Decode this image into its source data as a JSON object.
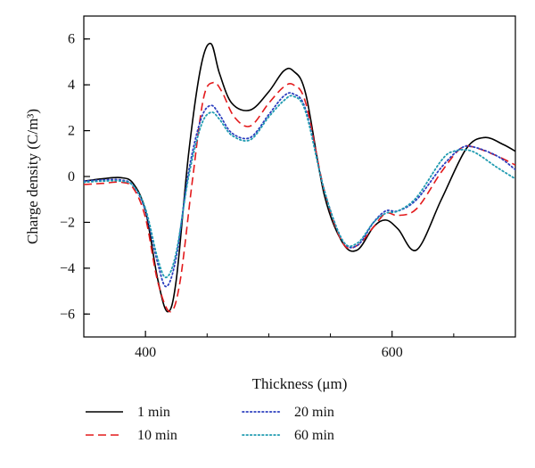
{
  "chart_data": {
    "type": "line",
    "xlabel": "Thickness (μm)",
    "ylabel": "Charge density (C/m³)",
    "xlim": [
      350,
      700
    ],
    "ylim": [
      -7,
      7
    ],
    "x_ticks": [
      400,
      600
    ],
    "x_minor_ticks": [
      350,
      450,
      500,
      550,
      650,
      700
    ],
    "y_ticks": [
      -6,
      -4,
      -2,
      0,
      2,
      4,
      6
    ],
    "grid": false,
    "legend_position": "bottom",
    "series": [
      {
        "name": "1 min",
        "color": "#000000",
        "style": "solid",
        "x": [
          350,
          365,
          380,
          390,
          400,
          410,
          418,
          425,
          435,
          445,
          453,
          460,
          470,
          485,
          500,
          512,
          520,
          530,
          545,
          560,
          572,
          585,
          595,
          605,
          620,
          640,
          660,
          675,
          690,
          700
        ],
        "y": [
          -0.2,
          -0.1,
          -0.05,
          -0.3,
          -1.5,
          -4.5,
          -5.9,
          -4.5,
          1.0,
          4.8,
          5.8,
          4.5,
          3.2,
          2.9,
          3.7,
          4.6,
          4.6,
          3.6,
          -0.8,
          -2.9,
          -3.2,
          -2.2,
          -1.9,
          -2.3,
          -3.2,
          -1.0,
          1.2,
          1.7,
          1.4,
          1.1
        ]
      },
      {
        "name": "10 min",
        "color": "#e31a1c",
        "style": "dashed",
        "x": [
          350,
          365,
          380,
          390,
          400,
          410,
          420,
          428,
          438,
          447,
          455,
          462,
          472,
          485,
          500,
          512,
          520,
          530,
          545,
          560,
          572,
          585,
          595,
          605,
          620,
          640,
          655,
          665,
          685,
          700
        ],
        "y": [
          -0.35,
          -0.3,
          -0.25,
          -0.5,
          -1.8,
          -4.6,
          -5.9,
          -4.6,
          -0.2,
          3.4,
          4.1,
          3.7,
          2.6,
          2.2,
          3.2,
          3.9,
          4.0,
          3.2,
          -0.6,
          -2.9,
          -3.0,
          -2.2,
          -1.6,
          -1.7,
          -1.4,
          0.2,
          1.2,
          1.3,
          0.9,
          0.5
        ]
      },
      {
        "name": "20 min",
        "color": "#2c3fbf",
        "style": "dotted",
        "x": [
          350,
          365,
          380,
          390,
          400,
          410,
          417,
          425,
          435,
          445,
          453,
          460,
          470,
          485,
          500,
          512,
          520,
          530,
          545,
          560,
          572,
          585,
          595,
          605,
          620,
          640,
          655,
          665,
          685,
          700
        ],
        "y": [
          -0.2,
          -0.15,
          -0.15,
          -0.4,
          -1.5,
          -3.8,
          -4.8,
          -3.5,
          0.2,
          2.5,
          3.1,
          2.7,
          1.9,
          1.7,
          2.7,
          3.5,
          3.6,
          2.9,
          -0.6,
          -2.8,
          -3.0,
          -2.0,
          -1.5,
          -1.5,
          -1.0,
          0.4,
          1.2,
          1.3,
          0.9,
          0.3
        ]
      },
      {
        "name": "60 min",
        "color": "#1f9bb0",
        "style": "dotted",
        "x": [
          350,
          365,
          380,
          390,
          400,
          410,
          417,
          425,
          435,
          445,
          453,
          460,
          470,
          485,
          500,
          512,
          520,
          530,
          545,
          560,
          572,
          585,
          595,
          605,
          620,
          640,
          650,
          665,
          685,
          700
        ],
        "y": [
          -0.25,
          -0.2,
          -0.2,
          -0.4,
          -1.4,
          -3.6,
          -4.4,
          -3.3,
          0.0,
          2.2,
          2.8,
          2.5,
          1.8,
          1.6,
          2.6,
          3.3,
          3.5,
          2.8,
          -0.6,
          -2.8,
          -2.9,
          -2.0,
          -1.6,
          -1.5,
          -0.9,
          0.7,
          1.1,
          1.1,
          0.4,
          -0.1
        ]
      }
    ]
  }
}
